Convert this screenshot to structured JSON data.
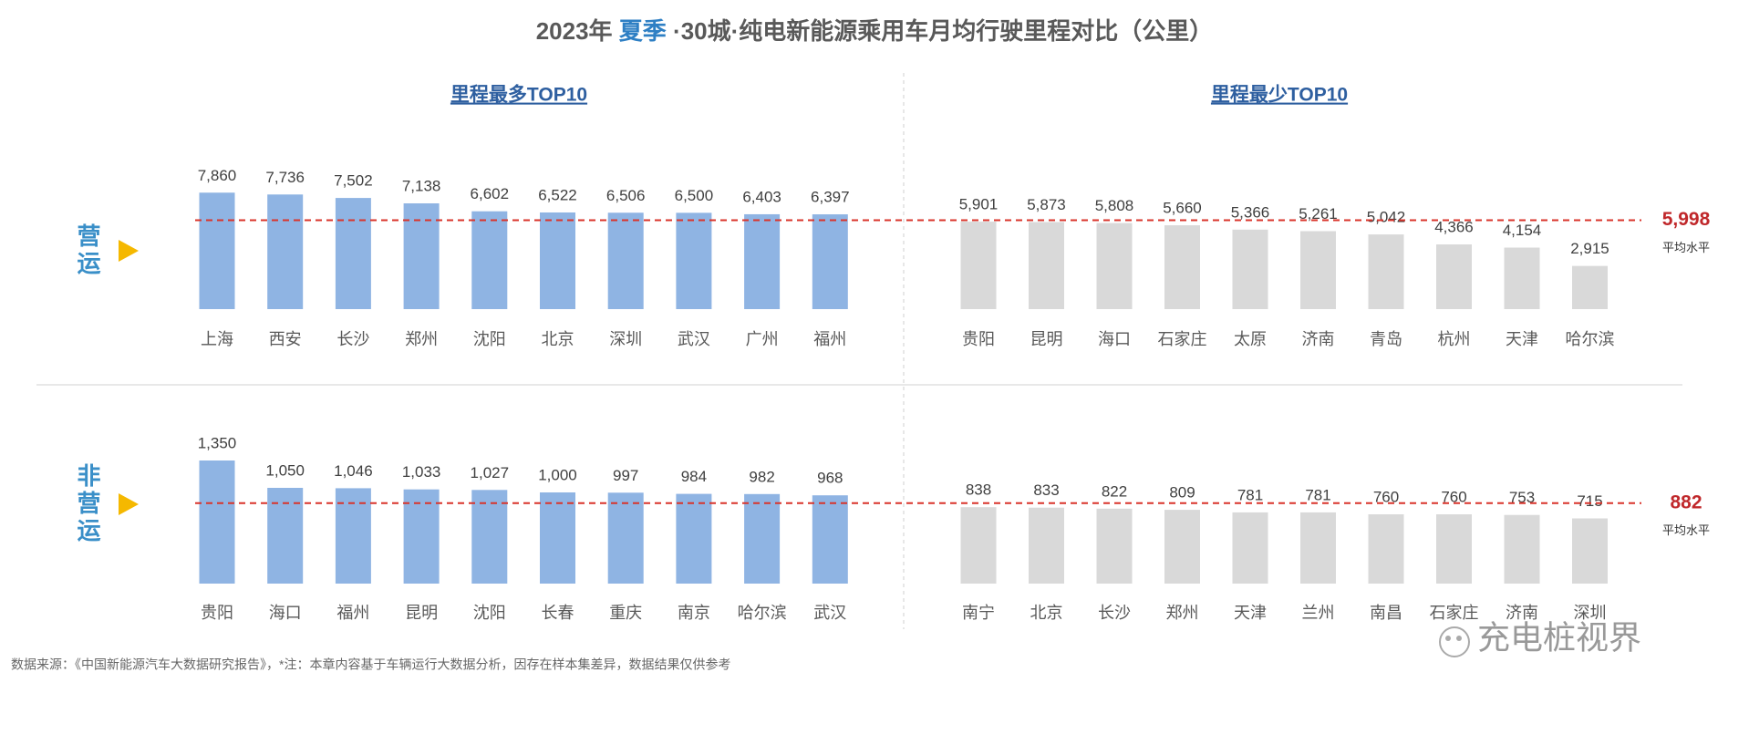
{
  "title": {
    "prefix": "2023年 ",
    "highlight": "夏季",
    "suffix": " ·30城·纯电新能源乘用车月均行驶里程对比（公里）"
  },
  "chart_data": [
    {
      "type": "bar",
      "label": "营运",
      "ylim": [
        0,
        8000
      ],
      "average": 5998,
      "average_label": "5,998",
      "average_note": "平均水平",
      "panels": [
        {
          "title": "里程最多TOP10",
          "color": "#8fb4e3",
          "categories": [
            "上海",
            "西安",
            "长沙",
            "郑州",
            "沈阳",
            "北京",
            "深圳",
            "武汉",
            "广州",
            "福州"
          ],
          "values": [
            7860,
            7736,
            7502,
            7138,
            6602,
            6522,
            6506,
            6500,
            6403,
            6397
          ],
          "value_labels": [
            "7,860",
            "7,736",
            "7,502",
            "7,138",
            "6,602",
            "6,522",
            "6,506",
            "6,500",
            "6,403",
            "6,397"
          ]
        },
        {
          "title": "里程最少TOP10",
          "color": "#d9d9d9",
          "categories": [
            "贵阳",
            "昆明",
            "海口",
            "石家庄",
            "太原",
            "济南",
            "青岛",
            "杭州",
            "天津",
            "哈尔滨"
          ],
          "values": [
            5901,
            5873,
            5808,
            5660,
            5366,
            5261,
            5042,
            4366,
            4154,
            2915
          ],
          "value_labels": [
            "5,901",
            "5,873",
            "5,808",
            "5,660",
            "5,366",
            "5,261",
            "5,042",
            "4,366",
            "4,154",
            "2,915"
          ]
        }
      ]
    },
    {
      "type": "bar",
      "label": "非营运",
      "ylim": [
        0,
        1400
      ],
      "average": 882,
      "average_note": "平均水平",
      "panels": [
        {
          "color": "#8fb4e3",
          "categories": [
            "贵阳",
            "海口",
            "福州",
            "昆明",
            "沈阳",
            "长春",
            "重庆",
            "南京",
            "哈尔滨",
            "武汉"
          ],
          "values": [
            1350,
            1050,
            1046,
            1033,
            1027,
            1000,
            997,
            984,
            982,
            968
          ],
          "value_labels": [
            "1,350",
            "1,050",
            "1,046",
            "1,033",
            "1,027",
            "1,000",
            "997",
            "984",
            "982",
            "968"
          ]
        },
        {
          "color": "#d9d9d9",
          "categories": [
            "南宁",
            "北京",
            "长沙",
            "郑州",
            "天津",
            "兰州",
            "南昌",
            "石家庄",
            "济南",
            "深圳"
          ],
          "values": [
            838,
            833,
            822,
            809,
            781,
            781,
            760,
            760,
            753,
            715
          ]
        }
      ]
    }
  ],
  "source": "数据来源：《中国新能源汽车大数据研究报告》，*注：本章内容基于车辆运行大数据分析，因存在样本集差异，数据结果仅供参考",
  "watermark": "充电桩视界"
}
